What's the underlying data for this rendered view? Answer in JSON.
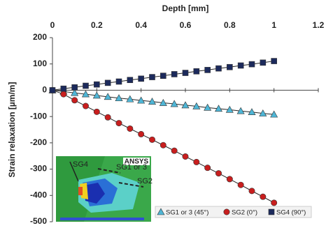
{
  "chart_data": {
    "type": "line",
    "x_label": "Depth [mm]",
    "y_label": "Strain relaxation [µm/m]",
    "x": [
      0,
      0.05,
      0.1,
      0.15,
      0.2,
      0.25,
      0.3,
      0.35,
      0.4,
      0.45,
      0.5,
      0.55,
      0.6,
      0.65,
      0.7,
      0.75,
      0.8,
      0.85,
      0.9,
      0.95,
      1
    ],
    "series": [
      {
        "name": "SG1 or 3 (45°)",
        "color": "#4fb6d6",
        "marker": "triangle",
        "values": [
          0,
          -5,
          -10,
          -15,
          -20,
          -25,
          -30,
          -34,
          -39,
          -43,
          -48,
          -52,
          -57,
          -61,
          -66,
          -70,
          -74,
          -79,
          -83,
          -88,
          -92
        ]
      },
      {
        "name": "SG2 (0°)",
        "color": "#c81e1e",
        "marker": "circle",
        "values": [
          0,
          -15,
          -38,
          -60,
          -82,
          -103,
          -125,
          -146,
          -167,
          -188,
          -209,
          -230,
          -252,
          -273,
          -295,
          -316,
          -338,
          -360,
          -383,
          -405,
          -428
        ]
      },
      {
        "name": "SG4 (90°)",
        "color": "#1c2a5c",
        "marker": "square",
        "values": [
          0,
          6,
          11,
          17,
          22,
          28,
          33,
          39,
          44,
          50,
          55,
          61,
          66,
          72,
          77,
          83,
          88,
          94,
          99,
          105,
          111
        ]
      }
    ],
    "xlim": [
      0,
      1.2
    ],
    "xticks": [
      0,
      0.2,
      0.4,
      0.6,
      0.8,
      1,
      1.2
    ],
    "ylim": [
      -500,
      200
    ],
    "yticks": [
      200,
      100,
      0,
      -100,
      -200,
      -300,
      -400,
      -500
    ],
    "grid": false,
    "legend": "bottom-right",
    "annotations": [
      "SG4",
      "SG1 or 3",
      "SG2",
      "ANSYS"
    ]
  }
}
